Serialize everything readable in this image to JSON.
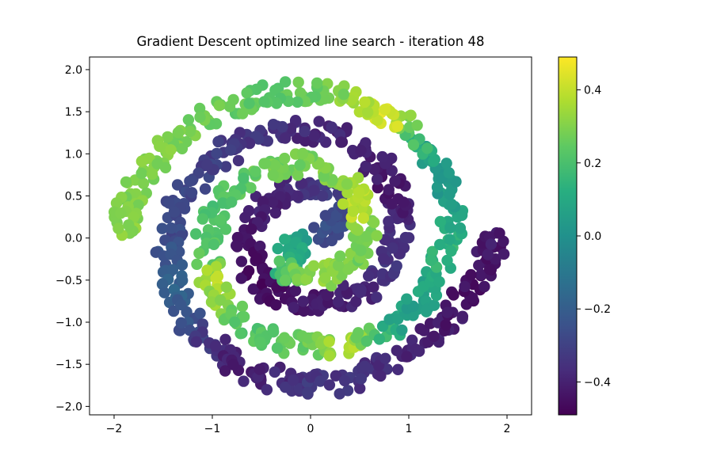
{
  "chart_data": {
    "type": "scatter",
    "title": "Gradient Descent optimized line search - iteration 48",
    "xlabel": "",
    "ylabel": "",
    "xlim": [
      -2.25,
      2.25
    ],
    "ylim": [
      -2.1,
      2.15
    ],
    "xticks": [
      -2,
      -1,
      0,
      1,
      2
    ],
    "xtick_labels": [
      "−2",
      "−1",
      "0",
      "1",
      "2"
    ],
    "yticks": [
      -2.0,
      -1.5,
      -1.0,
      -0.5,
      0.0,
      0.5,
      1.0,
      1.5,
      2.0
    ],
    "ytick_labels": [
      "−2.0",
      "−1.5",
      "−1.0",
      "−0.5",
      "0.0",
      "0.5",
      "1.0",
      "1.5",
      "2.0"
    ],
    "colorbar": {
      "cmap": "viridis",
      "range": [
        -0.49,
        0.49
      ],
      "ticks": [
        -0.4,
        -0.2,
        0.0,
        0.2,
        0.4
      ],
      "tick_labels": [
        "−0.4",
        "−0.2",
        "0.0",
        "0.2",
        "0.4"
      ]
    },
    "grid": false,
    "marker_color_scale": [
      "#440154",
      "#3b528b",
      "#21918c",
      "#5ec962",
      "#fde725"
    ],
    "spiral_a": {
      "description": "two interleaved noisy spirals",
      "points": [
        {
          "x": 0.1,
          "y": 0.0,
          "v": -0.3
        },
        {
          "x": 0.22,
          "y": 0.15,
          "v": -0.25
        },
        {
          "x": 0.3,
          "y": 0.38,
          "v": -0.28
        },
        {
          "x": 0.22,
          "y": 0.55,
          "v": -0.32
        },
        {
          "x": 0.0,
          "y": 0.62,
          "v": -0.35
        },
        {
          "x": -0.25,
          "y": 0.58,
          "v": -0.38
        },
        {
          "x": -0.48,
          "y": 0.42,
          "v": -0.4
        },
        {
          "x": -0.62,
          "y": 0.15,
          "v": -0.42
        },
        {
          "x": -0.65,
          "y": -0.15,
          "v": -0.44
        },
        {
          "x": -0.55,
          "y": -0.45,
          "v": -0.47
        },
        {
          "x": -0.35,
          "y": -0.65,
          "v": -0.45
        },
        {
          "x": -0.1,
          "y": -0.75,
          "v": -0.43
        },
        {
          "x": 0.15,
          "y": -0.78,
          "v": -0.42
        },
        {
          "x": 0.4,
          "y": -0.72,
          "v": -0.4
        },
        {
          "x": 0.62,
          "y": -0.55,
          "v": -0.36
        },
        {
          "x": 0.78,
          "y": -0.3,
          "v": -0.34
        },
        {
          "x": 0.88,
          "y": -0.02,
          "v": -0.36
        },
        {
          "x": 0.9,
          "y": 0.28,
          "v": -0.4
        },
        {
          "x": 0.85,
          "y": 0.55,
          "v": -0.44
        },
        {
          "x": 0.75,
          "y": 0.82,
          "v": -0.42
        },
        {
          "x": 0.55,
          "y": 1.05,
          "v": -0.4
        },
        {
          "x": 0.3,
          "y": 1.22,
          "v": -0.38
        },
        {
          "x": 0.0,
          "y": 1.3,
          "v": -0.38
        },
        {
          "x": -0.3,
          "y": 1.28,
          "v": -0.36
        },
        {
          "x": -0.6,
          "y": 1.18,
          "v": -0.34
        },
        {
          "x": -0.9,
          "y": 1.0,
          "v": -0.32
        },
        {
          "x": -1.12,
          "y": 0.78,
          "v": -0.3
        },
        {
          "x": -1.3,
          "y": 0.5,
          "v": -0.28
        },
        {
          "x": -1.4,
          "y": 0.2,
          "v": -0.28
        },
        {
          "x": -1.45,
          "y": -0.12,
          "v": -0.24
        },
        {
          "x": -1.42,
          "y": -0.45,
          "v": -0.2
        },
        {
          "x": -1.35,
          "y": -0.75,
          "v": -0.18
        },
        {
          "x": -1.22,
          "y": -1.0,
          "v": -0.26
        },
        {
          "x": -1.05,
          "y": -1.22,
          "v": -0.34
        },
        {
          "x": -0.85,
          "y": -1.42,
          "v": -0.4
        },
        {
          "x": -0.6,
          "y": -1.58,
          "v": -0.4
        },
        {
          "x": -0.3,
          "y": -1.7,
          "v": -0.38
        },
        {
          "x": 0.0,
          "y": -1.75,
          "v": -0.33
        },
        {
          "x": 0.3,
          "y": -1.72,
          "v": -0.34
        },
        {
          "x": 0.6,
          "y": -1.6,
          "v": -0.36
        },
        {
          "x": 0.9,
          "y": -1.45,
          "v": -0.38
        },
        {
          "x": 1.15,
          "y": -1.25,
          "v": -0.4
        },
        {
          "x": 1.38,
          "y": -1.0,
          "v": -0.42
        },
        {
          "x": 1.55,
          "y": -0.72,
          "v": -0.44
        },
        {
          "x": 1.7,
          "y": -0.45,
          "v": -0.45
        },
        {
          "x": 1.82,
          "y": -0.18,
          "v": -0.43
        },
        {
          "x": 1.95,
          "y": 0.0,
          "v": -0.42
        }
      ]
    },
    "spiral_b": {
      "description": "second spiral arm",
      "points": [
        {
          "x": -0.1,
          "y": 0.0,
          "v": 0.05
        },
        {
          "x": -0.22,
          "y": -0.15,
          "v": 0.1
        },
        {
          "x": -0.28,
          "y": -0.38,
          "v": 0.15
        },
        {
          "x": -0.12,
          "y": -0.42,
          "v": 0.28
        },
        {
          "x": 0.1,
          "y": -0.45,
          "v": 0.32
        },
        {
          "x": 0.32,
          "y": -0.35,
          "v": 0.3
        },
        {
          "x": 0.48,
          "y": -0.15,
          "v": 0.28
        },
        {
          "x": 0.55,
          "y": 0.1,
          "v": 0.3
        },
        {
          "x": 0.52,
          "y": 0.38,
          "v": 0.4
        },
        {
          "x": 0.4,
          "y": 0.62,
          "v": 0.36
        },
        {
          "x": 0.2,
          "y": 0.8,
          "v": 0.3
        },
        {
          "x": -0.05,
          "y": 0.88,
          "v": 0.28
        },
        {
          "x": -0.3,
          "y": 0.85,
          "v": 0.28
        },
        {
          "x": -0.55,
          "y": 0.75,
          "v": 0.25
        },
        {
          "x": -0.78,
          "y": 0.55,
          "v": 0.22
        },
        {
          "x": -0.95,
          "y": 0.3,
          "v": 0.2
        },
        {
          "x": -1.05,
          "y": 0.02,
          "v": 0.22
        },
        {
          "x": -1.05,
          "y": -0.28,
          "v": 0.25
        },
        {
          "x": -1.0,
          "y": -0.55,
          "v": 0.4
        },
        {
          "x": -0.88,
          "y": -0.82,
          "v": 0.3
        },
        {
          "x": -0.7,
          "y": -1.05,
          "v": 0.22
        },
        {
          "x": -0.45,
          "y": -1.2,
          "v": 0.22
        },
        {
          "x": -0.15,
          "y": -1.28,
          "v": 0.25
        },
        {
          "x": 0.15,
          "y": -1.3,
          "v": 0.3
        },
        {
          "x": 0.4,
          "y": -1.28,
          "v": 0.4
        },
        {
          "x": 0.65,
          "y": -1.18,
          "v": 0.2
        },
        {
          "x": 0.9,
          "y": -1.0,
          "v": 0.08
        },
        {
          "x": 1.1,
          "y": -0.78,
          "v": 0.05
        },
        {
          "x": 1.25,
          "y": -0.52,
          "v": 0.1
        },
        {
          "x": 1.35,
          "y": -0.22,
          "v": 0.15
        },
        {
          "x": 1.42,
          "y": 0.1,
          "v": 0.12
        },
        {
          "x": 1.42,
          "y": 0.42,
          "v": 0.05
        },
        {
          "x": 1.35,
          "y": 0.72,
          "v": 0.02
        },
        {
          "x": 1.22,
          "y": 1.0,
          "v": 0.08
        },
        {
          "x": 1.05,
          "y": 1.25,
          "v": 0.22
        },
        {
          "x": 0.8,
          "y": 1.45,
          "v": 0.45
        },
        {
          "x": 0.55,
          "y": 1.58,
          "v": 0.38
        },
        {
          "x": 0.25,
          "y": 1.7,
          "v": 0.3
        },
        {
          "x": -0.05,
          "y": 1.75,
          "v": 0.25
        },
        {
          "x": -0.35,
          "y": 1.72,
          "v": 0.24
        },
        {
          "x": -0.65,
          "y": 1.62,
          "v": 0.24
        },
        {
          "x": -0.95,
          "y": 1.48,
          "v": 0.26
        },
        {
          "x": -1.22,
          "y": 1.3,
          "v": 0.28
        },
        {
          "x": -1.45,
          "y": 1.08,
          "v": 0.3
        },
        {
          "x": -1.62,
          "y": 0.82,
          "v": 0.3
        },
        {
          "x": -1.78,
          "y": 0.55,
          "v": 0.28
        },
        {
          "x": -1.88,
          "y": 0.28,
          "v": 0.3
        },
        {
          "x": -1.92,
          "y": 0.05,
          "v": 0.32
        }
      ]
    }
  }
}
